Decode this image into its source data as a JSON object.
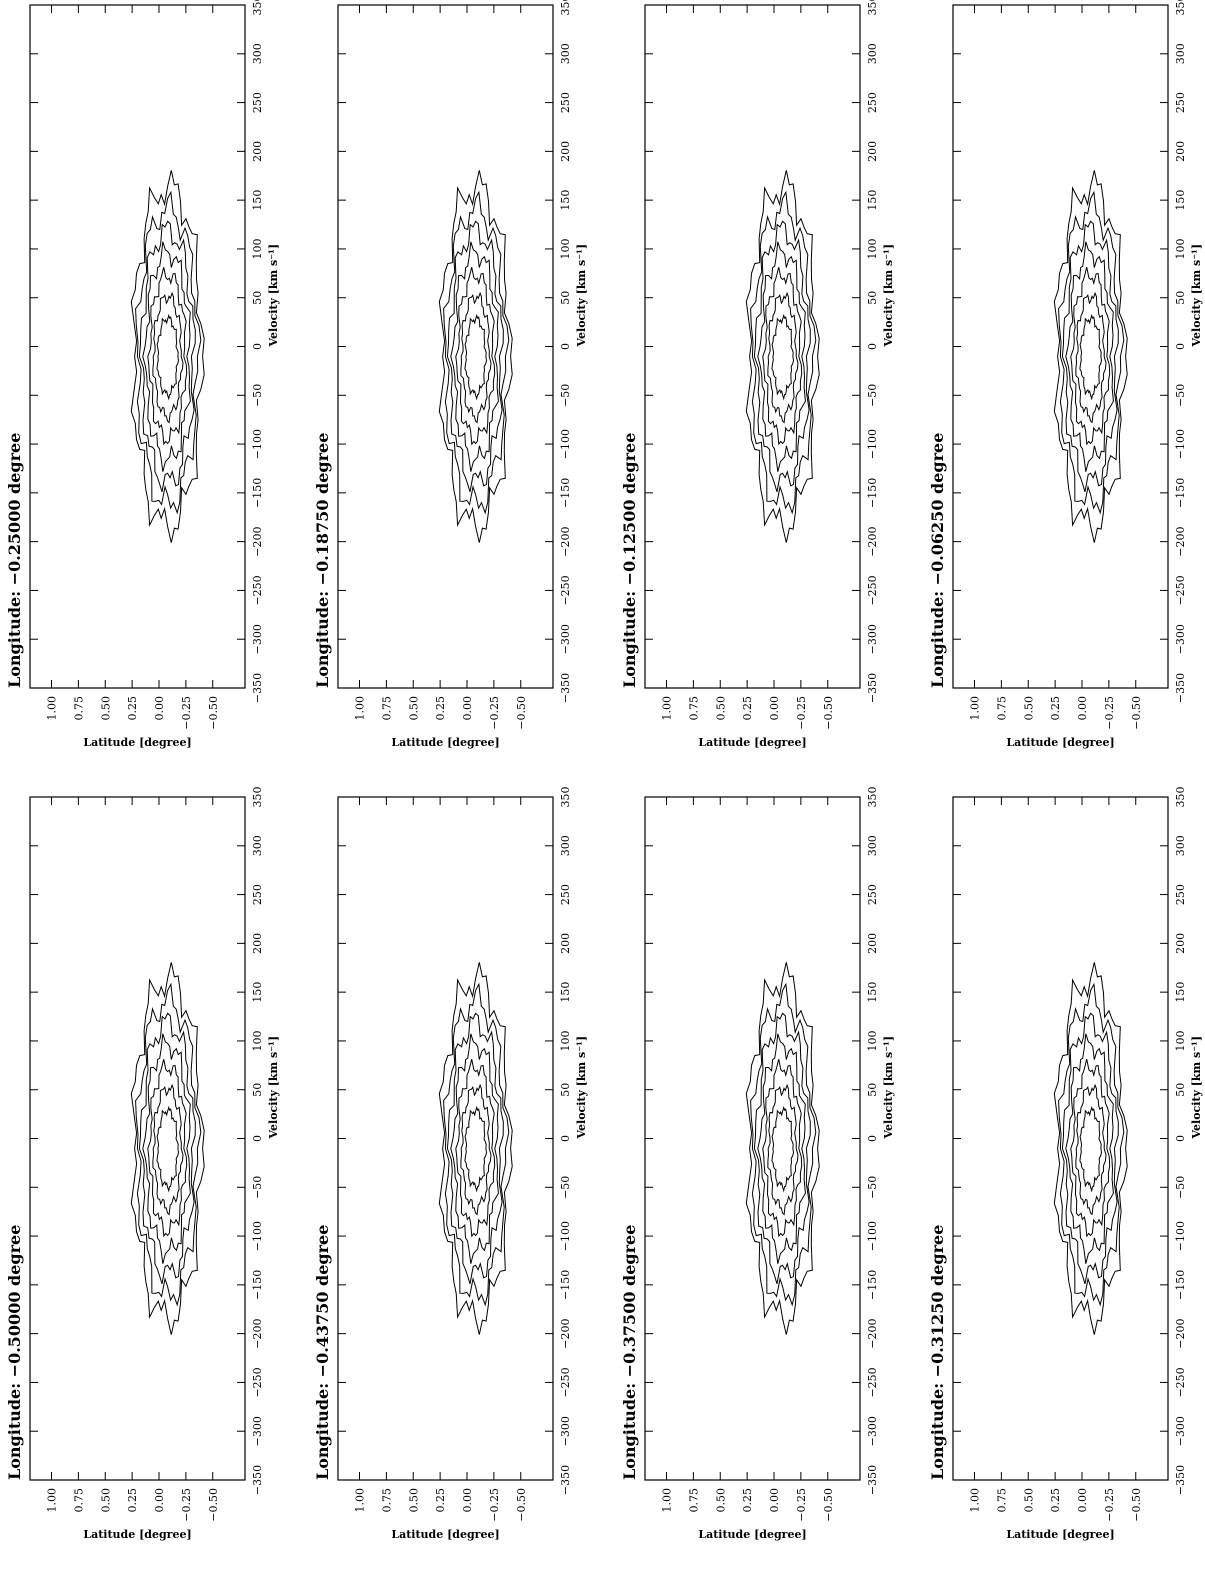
{
  "chart_data": [
    {
      "type": "contour",
      "title": "Longitude: −0.25000 degree",
      "xlabel": "Velocity [km s⁻¹]",
      "ylabel": "Latitude [degree]",
      "xlim": [
        -350,
        350
      ],
      "ylim": [
        -0.8,
        1.2
      ],
      "xticks": [
        {
          "value": -350,
          "label": "−350"
        },
        {
          "value": -300,
          "label": "−300"
        },
        {
          "value": -250,
          "label": "−250"
        },
        {
          "value": -200,
          "label": "−200"
        },
        {
          "value": -150,
          "label": "−150"
        },
        {
          "value": -100,
          "label": "−100"
        },
        {
          "value": -50,
          "label": "−50"
        },
        0,
        50,
        100,
        150,
        200,
        250,
        300,
        350
      ],
      "yticks": [
        {
          "value": 1,
          "label": "1.00"
        },
        0.75,
        {
          "value": 0.5,
          "label": "0.50"
        },
        0.25,
        {
          "value": 0,
          "label": "0.00"
        },
        {
          "value": -0.25,
          "label": "−0.25"
        },
        {
          "value": -0.5,
          "label": "−0.50"
        }
      ]
    },
    {
      "type": "contour",
      "title": "Longitude: −0.18750 degree",
      "xlabel": "Velocity [km s⁻¹]",
      "ylabel": "Latitude [degree]",
      "xlim": [
        -350,
        350
      ],
      "ylim": [
        -0.8,
        1.2
      ],
      "xticks": [
        {
          "value": -350,
          "label": "−350"
        },
        {
          "value": -300,
          "label": "−300"
        },
        {
          "value": -250,
          "label": "−250"
        },
        {
          "value": -200,
          "label": "−200"
        },
        {
          "value": -150,
          "label": "−150"
        },
        {
          "value": -100,
          "label": "−100"
        },
        {
          "value": -50,
          "label": "−50"
        },
        0,
        50,
        100,
        150,
        200,
        250,
        300,
        350
      ],
      "yticks": [
        {
          "value": 1,
          "label": "1.00"
        },
        0.75,
        {
          "value": 0.5,
          "label": "0.50"
        },
        0.25,
        {
          "value": 0,
          "label": "0.00"
        },
        {
          "value": -0.25,
          "label": "−0.25"
        },
        {
          "value": -0.5,
          "label": "−0.50"
        }
      ]
    },
    {
      "type": "contour",
      "title": "Longitude: −0.12500 degree",
      "xlabel": "Velocity [km s⁻¹]",
      "ylabel": "Latitude [degree]",
      "xlim": [
        -350,
        350
      ],
      "ylim": [
        -0.8,
        1.2
      ],
      "xticks": [
        {
          "value": -350,
          "label": "−350"
        },
        {
          "value": -300,
          "label": "−300"
        },
        {
          "value": -250,
          "label": "−250"
        },
        {
          "value": -200,
          "label": "−200"
        },
        {
          "value": -150,
          "label": "−150"
        },
        {
          "value": -100,
          "label": "−100"
        },
        {
          "value": -50,
          "label": "−50"
        },
        0,
        50,
        100,
        150,
        200,
        250,
        300,
        350
      ],
      "yticks": [
        {
          "value": 1,
          "label": "1.00"
        },
        0.75,
        {
          "value": 0.5,
          "label": "0.50"
        },
        0.25,
        {
          "value": 0,
          "label": "0.00"
        },
        {
          "value": -0.25,
          "label": "−0.25"
        },
        {
          "value": -0.5,
          "label": "−0.50"
        }
      ]
    },
    {
      "type": "contour",
      "title": "Longitude: −0.06250 degree",
      "xlabel": "Velocity [km s⁻¹]",
      "ylabel": "Latitude [degree]",
      "xlim": [
        -350,
        350
      ],
      "ylim": [
        -0.8,
        1.2
      ],
      "xticks": [
        {
          "value": -350,
          "label": "−350"
        },
        {
          "value": -300,
          "label": "−300"
        },
        {
          "value": -250,
          "label": "−250"
        },
        {
          "value": -200,
          "label": "−200"
        },
        {
          "value": -150,
          "label": "−150"
        },
        {
          "value": -100,
          "label": "−100"
        },
        {
          "value": -50,
          "label": "−50"
        },
        0,
        50,
        100,
        150,
        200,
        250,
        300,
        350
      ],
      "yticks": [
        {
          "value": 1,
          "label": "1.00"
        },
        0.75,
        {
          "value": 0.5,
          "label": "0.50"
        },
        0.25,
        {
          "value": 0,
          "label": "0.00"
        },
        {
          "value": -0.25,
          "label": "−0.25"
        },
        {
          "value": -0.5,
          "label": "−0.50"
        }
      ]
    },
    {
      "type": "contour",
      "title": "Longitude: −0.50000 degree",
      "xlabel": "Velocity [km s⁻¹]",
      "ylabel": "Latitude [degree]",
      "xlim": [
        -350,
        350
      ],
      "ylim": [
        -0.8,
        1.2
      ],
      "xticks": [
        {
          "value": -350,
          "label": "−350"
        },
        {
          "value": -300,
          "label": "−300"
        },
        {
          "value": -250,
          "label": "−250"
        },
        {
          "value": -200,
          "label": "−200"
        },
        {
          "value": -150,
          "label": "−150"
        },
        {
          "value": -100,
          "label": "−100"
        },
        {
          "value": -50,
          "label": "−50"
        },
        0,
        50,
        100,
        150,
        200,
        250,
        300,
        350
      ],
      "yticks": [
        {
          "value": 1,
          "label": "1.00"
        },
        0.75,
        {
          "value": 0.5,
          "label": "0.50"
        },
        0.25,
        {
          "value": 0,
          "label": "0.00"
        },
        {
          "value": -0.25,
          "label": "−0.25"
        },
        {
          "value": -0.5,
          "label": "−0.50"
        }
      ]
    },
    {
      "type": "contour",
      "title": "Longitude: −0.43750 degree",
      "xlabel": "Velocity [km s⁻¹]",
      "ylabel": "Latitude [degree]",
      "xlim": [
        -350,
        350
      ],
      "ylim": [
        -0.8,
        1.2
      ],
      "xticks": [
        {
          "value": -350,
          "label": "−350"
        },
        {
          "value": -300,
          "label": "−300"
        },
        {
          "value": -250,
          "label": "−250"
        },
        {
          "value": -200,
          "label": "−200"
        },
        {
          "value": -150,
          "label": "−150"
        },
        {
          "value": -100,
          "label": "−100"
        },
        {
          "value": -50,
          "label": "−50"
        },
        0,
        50,
        100,
        150,
        200,
        250,
        300,
        350
      ],
      "yticks": [
        {
          "value": 1,
          "label": "1.00"
        },
        0.75,
        {
          "value": 0.5,
          "label": "0.50"
        },
        0.25,
        {
          "value": 0,
          "label": "0.00"
        },
        {
          "value": -0.25,
          "label": "−0.25"
        },
        {
          "value": -0.5,
          "label": "−0.50"
        }
      ]
    },
    {
      "type": "contour",
      "title": "Longitude: −0.37500 degree",
      "xlabel": "Velocity [km s⁻¹]",
      "ylabel": "Latitude [degree]",
      "xlim": [
        -350,
        350
      ],
      "ylim": [
        -0.8,
        1.2
      ],
      "xticks": [
        {
          "value": -350,
          "label": "−350"
        },
        {
          "value": -300,
          "label": "−300"
        },
        {
          "value": -250,
          "label": "−250"
        },
        {
          "value": -200,
          "label": "−200"
        },
        {
          "value": -150,
          "label": "−150"
        },
        {
          "value": -100,
          "label": "−100"
        },
        {
          "value": -50,
          "label": "−50"
        },
        0,
        50,
        100,
        150,
        200,
        250,
        300,
        350
      ],
      "yticks": [
        {
          "value": 1,
          "label": "1.00"
        },
        0.75,
        {
          "value": 0.5,
          "label": "0.50"
        },
        0.25,
        {
          "value": 0,
          "label": "0.00"
        },
        {
          "value": -0.25,
          "label": "−0.25"
        },
        {
          "value": -0.5,
          "label": "−0.50"
        }
      ]
    },
    {
      "type": "contour",
      "title": "Longitude: −0.31250 degree",
      "xlabel": "Velocity [km s⁻¹]",
      "ylabel": "Latitude [degree]",
      "xlim": [
        -350,
        350
      ],
      "ylim": [
        -0.8,
        1.2
      ],
      "xticks": [
        {
          "value": -350,
          "label": "−350"
        },
        {
          "value": -300,
          "label": "−300"
        },
        {
          "value": -250,
          "label": "−250"
        },
        {
          "value": -200,
          "label": "−200"
        },
        {
          "value": -150,
          "label": "−150"
        },
        {
          "value": -100,
          "label": "−100"
        },
        {
          "value": -50,
          "label": "−50"
        },
        0,
        50,
        100,
        150,
        200,
        250,
        300,
        350
      ],
      "yticks": [
        {
          "value": 1,
          "label": "1.00"
        },
        0.75,
        {
          "value": 0.5,
          "label": "0.50"
        },
        0.25,
        {
          "value": 0,
          "label": "0.00"
        },
        {
          "value": -0.25,
          "label": "−0.25"
        },
        {
          "value": -0.5,
          "label": "−0.50"
        }
      ]
    }
  ]
}
